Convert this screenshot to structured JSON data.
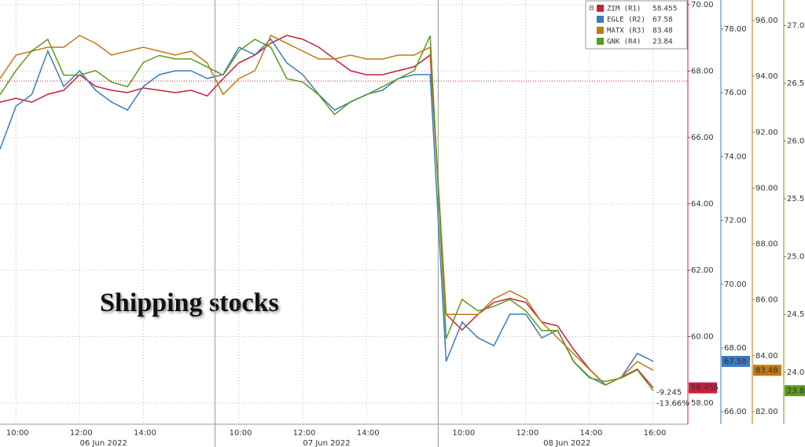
{
  "chart_data": {
    "type": "line",
    "annotation": "Shipping stocks",
    "categories": [
      null,
      "10:00",
      null,
      null,
      null,
      "12:00",
      null,
      null,
      null,
      "14:00",
      null,
      null,
      null,
      null,
      null,
      "10:00",
      null,
      null,
      null,
      "12:00",
      null,
      null,
      null,
      "14:00",
      null,
      null,
      null,
      null,
      null,
      "10:00",
      null,
      null,
      null,
      "12:00",
      null,
      null,
      null,
      "14:00",
      null,
      null,
      null,
      "16:00"
    ],
    "dates": [
      "06 Jun 2022",
      "07 Jun 2022",
      "08 Jun 2022"
    ],
    "series": [
      {
        "name": "ZIM (R1)",
        "color": "#c8203c",
        "axis": "y",
        "values": [
          67.06,
          67.18,
          67.06,
          67.3,
          67.42,
          67.89,
          67.54,
          67.42,
          67.35,
          67.49,
          67.42,
          67.35,
          67.42,
          67.25,
          67.77,
          68.25,
          68.48,
          68.84,
          69.07,
          68.96,
          68.72,
          68.36,
          68.01,
          67.89,
          67.89,
          68.01,
          68.13,
          68.48,
          60.67,
          60.2,
          60.67,
          61.03,
          61.15,
          61.03,
          60.44,
          60.32,
          59.61,
          59.02,
          58.54,
          58.78,
          59.02,
          58.455
        ]
      },
      {
        "name": "EGLE (R2)",
        "color": "#3a7bbf",
        "axis": "y2",
        "values": [
          74.23,
          75.58,
          75.95,
          77.31,
          76.2,
          76.69,
          76.08,
          75.71,
          75.46,
          76.2,
          76.57,
          76.69,
          76.69,
          76.45,
          76.57,
          77.43,
          77.19,
          77.68,
          76.94,
          76.57,
          75.95,
          75.46,
          75.71,
          75.95,
          76.08,
          76.45,
          76.57,
          76.57,
          67.58,
          68.81,
          68.32,
          68.07,
          69.06,
          69.06,
          68.32,
          68.56,
          67.58,
          67.09,
          66.84,
          67.09,
          67.83,
          67.58
        ]
      },
      {
        "name": "MATX (R3)",
        "color": "#c07a12",
        "axis": "y3",
        "values": [
          93.92,
          94.76,
          94.9,
          95.04,
          95.04,
          95.46,
          95.18,
          94.76,
          94.9,
          95.04,
          94.9,
          94.76,
          94.9,
          94.48,
          93.35,
          93.92,
          94.2,
          95.46,
          95.18,
          94.9,
          94.62,
          94.62,
          94.76,
          94.62,
          94.62,
          94.76,
          94.76,
          95.04,
          85.48,
          85.48,
          85.48,
          86.04,
          86.32,
          86.04,
          85.2,
          84.63,
          84.07,
          83.51,
          82.95,
          83.24,
          83.79,
          83.48
        ]
      },
      {
        "name": "GNK (R4)",
        "color": "#5c9a1c",
        "axis": "y4",
        "values": [
          26.4,
          26.61,
          26.78,
          26.88,
          26.57,
          26.57,
          26.61,
          26.51,
          26.47,
          26.68,
          26.74,
          26.71,
          26.71,
          26.64,
          26.57,
          26.78,
          26.88,
          26.81,
          26.54,
          26.51,
          26.4,
          26.23,
          26.34,
          26.4,
          26.47,
          26.54,
          26.61,
          26.91,
          24.29,
          24.63,
          24.53,
          24.57,
          24.63,
          24.53,
          24.36,
          24.36,
          24.09,
          23.95,
          23.92,
          23.95,
          24.02,
          23.84
        ]
      }
    ],
    "reference_line": 67.7,
    "change": -9.245,
    "change_pct": {
      "value": -13.66,
      "label": "-13.66%"
    },
    "ylim": [
      57.36,
      70.14
    ],
    "yticks": [
      {
        "value": 58,
        "label": "58.00"
      },
      {
        "value": 60,
        "label": "60.00"
      },
      {
        "value": 62,
        "label": "62.00"
      },
      {
        "value": 64,
        "label": "64.00"
      },
      {
        "value": 66,
        "label": "66.00"
      },
      {
        "value": 68,
        "label": "68.00"
      },
      {
        "value": 70,
        "label": "70.00"
      }
    ],
    "y2lim": [
      65.61,
      78.91
    ],
    "y2ticks": [
      {
        "value": 66,
        "label": "66.00"
      },
      {
        "value": 68,
        "label": "68.00"
      },
      {
        "value": 70,
        "label": "70.00"
      },
      {
        "value": 72,
        "label": "72.00"
      },
      {
        "value": 74,
        "label": "74.00"
      },
      {
        "value": 76,
        "label": "76.00"
      },
      {
        "value": 78,
        "label": "78.00"
      }
    ],
    "y3lim": [
      81.55,
      96.73
    ],
    "y3ticks": [
      {
        "value": 82,
        "label": "82.00"
      },
      {
        "value": 84,
        "label": "84.00"
      },
      {
        "value": 86,
        "label": "86.00"
      },
      {
        "value": 88,
        "label": "88.00"
      },
      {
        "value": 90,
        "label": "90.00"
      },
      {
        "value": 92,
        "label": "92.00"
      },
      {
        "value": 94,
        "label": "94.00"
      },
      {
        "value": 96,
        "label": "96.00"
      }
    ],
    "y4lim": [
      23.55,
      27.22
    ],
    "y4ticks": [
      {
        "value": 24,
        "label": "24.00"
      },
      {
        "value": 24.5,
        "label": "24.50"
      },
      {
        "value": 25,
        "label": "25.00"
      },
      {
        "value": 25.5,
        "label": "25.50"
      },
      {
        "value": 26,
        "label": "26.00"
      },
      {
        "value": 26.5,
        "label": "26.50"
      },
      {
        "value": 27,
        "label": "27.00"
      }
    ],
    "grid": true
  }
}
